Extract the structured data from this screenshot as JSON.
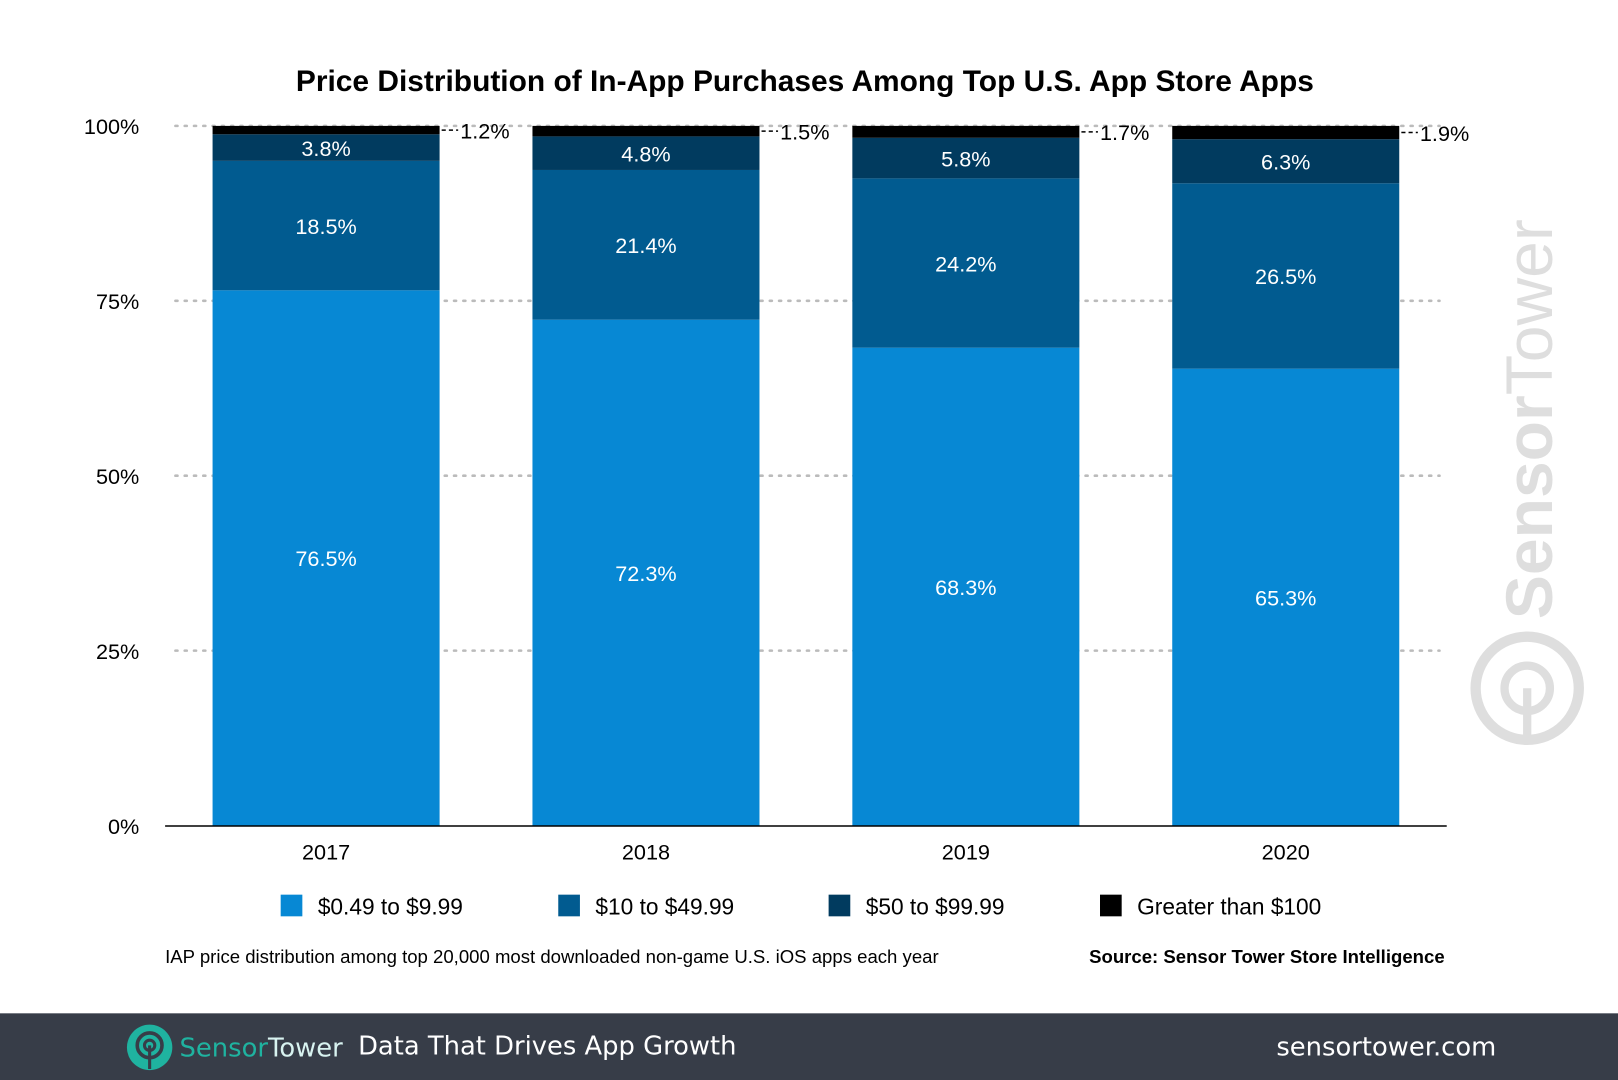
{
  "chart_data": {
    "type": "bar",
    "stacked": true,
    "title": "Price Distribution of In-App Purchases Among Top U.S. App Store Apps",
    "categories": [
      "2017",
      "2018",
      "2019",
      "2020"
    ],
    "series": [
      {
        "name": "$0.49 to $9.99",
        "color": "#0788d4",
        "values": [
          76.5,
          72.3,
          68.3,
          65.3
        ]
      },
      {
        "name": "$10 to $49.99",
        "color": "#015b90",
        "values": [
          18.5,
          21.4,
          24.2,
          26.5
        ]
      },
      {
        "name": "$50 to $99.99",
        "color": "#013b5f",
        "values": [
          3.8,
          4.8,
          5.8,
          6.3
        ]
      },
      {
        "name": "Greater than $100",
        "color": "#000000",
        "values": [
          1.2,
          1.5,
          1.7,
          1.9
        ]
      }
    ],
    "data_labels": [
      [
        "76.5%",
        "72.3%",
        "68.3%",
        "65.3%"
      ],
      [
        "18.5%",
        "21.4%",
        "24.2%",
        "26.5%"
      ],
      [
        "3.8%",
        "4.8%",
        "5.8%",
        "6.3%"
      ],
      [
        "1.2%",
        "1.5%",
        "1.7%",
        "1.9%"
      ]
    ],
    "yticks": [
      "0%",
      "25%",
      "50%",
      "75%",
      "100%"
    ],
    "ytick_values": [
      0,
      25,
      50,
      75,
      100
    ],
    "ylim": [
      0,
      100
    ],
    "grid": true,
    "legend_placement": "bottom",
    "note": "IAP price distribution among top 20,000 most downloaded non-game U.S. iOS apps each year",
    "source": "Source: Sensor Tower Store Intelligence",
    "watermark": "SensorTower"
  },
  "footer": {
    "logo_sensor": "Sensor",
    "logo_tower": "Tower",
    "tagline": "Data That Drives App Growth",
    "website": "sensortower.com",
    "bg_color": "#373d48",
    "brand_color": "#1fb3a0"
  }
}
